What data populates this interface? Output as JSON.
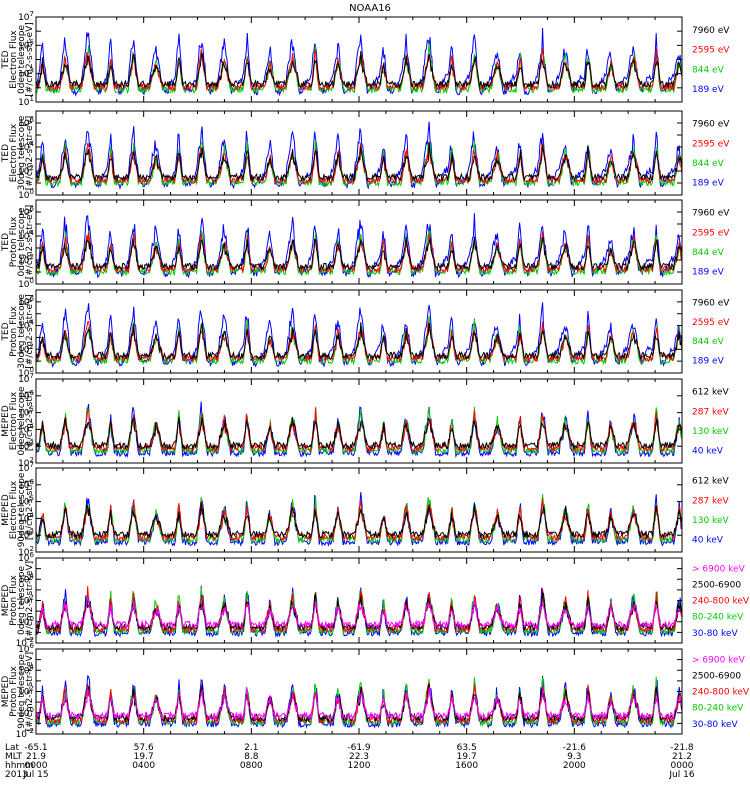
{
  "title": "NOAA16",
  "colors": {
    "blue": "#0000ff",
    "red": "#ff0000",
    "green": "#00cc00",
    "black": "#000000",
    "magenta": "#ff00ff"
  },
  "footer": {
    "row_labels": [
      "Lat",
      "MLT",
      "hhmm",
      "2013"
    ],
    "columns": [
      {
        "lat": "-65.1",
        "mlt": "21.9",
        "hhmm": "0000",
        "date": "Jul 15"
      },
      {
        "lat": "57.6",
        "mlt": "19.7",
        "hhmm": "0400",
        "date": ""
      },
      {
        "lat": "2.1",
        "mlt": "8.8",
        "hhmm": "0800",
        "date": ""
      },
      {
        "lat": "-61.9",
        "mlt": "22.3",
        "hhmm": "1200",
        "date": ""
      },
      {
        "lat": "63.5",
        "mlt": "19.7",
        "hhmm": "1600",
        "date": ""
      },
      {
        "lat": "-21.6",
        "mlt": "9.3",
        "hhmm": "2000",
        "date": ""
      },
      {
        "lat": "-21.8",
        "mlt": "21.2",
        "hhmm": "0000",
        "date": "Jul 16"
      }
    ]
  },
  "chart_data": [
    {
      "type": "line",
      "ylabel_lines": [
        "TED",
        "Electron Flux",
        "0deg telescope",
        "[#/cm2-s-str-eV]"
      ],
      "yscale": "log",
      "ylim_exp": [
        1,
        7
      ],
      "legend": [
        {
          "text": "7960 eV",
          "color": "#000000"
        },
        {
          "text": "2595 eV",
          "color": "#ff0000"
        },
        {
          "text": "844 eV",
          "color": "#00cc00"
        },
        {
          "text": "189 eV",
          "color": "#0000ff"
        }
      ]
    },
    {
      "type": "line",
      "ylabel_lines": [
        "TED",
        "Electron Flux",
        "30deg telescope",
        "[#/cm2-s-str-eV]"
      ],
      "yscale": "log",
      "ylim_exp": [
        0,
        7
      ],
      "legend": [
        {
          "text": "7960 eV",
          "color": "#000000"
        },
        {
          "text": "2595 eV",
          "color": "#ff0000"
        },
        {
          "text": "844 eV",
          "color": "#00cc00"
        },
        {
          "text": "189 eV",
          "color": "#0000ff"
        }
      ]
    },
    {
      "type": "line",
      "ylabel_lines": [
        "TED",
        "Proton Flux",
        "0deg telescope",
        "[#/cm2-s-str-eV]"
      ],
      "yscale": "log",
      "ylim_exp": [
        0,
        7
      ],
      "legend": [
        {
          "text": "7960 eV",
          "color": "#000000"
        },
        {
          "text": "2595 eV",
          "color": "#ff0000"
        },
        {
          "text": "844 eV",
          "color": "#00cc00"
        },
        {
          "text": "189 eV",
          "color": "#0000ff"
        }
      ]
    },
    {
      "type": "line",
      "ylabel_lines": [
        "TED",
        "Proton Flux",
        "30deg telescope",
        "[#/cm2-s-str-eV]"
      ],
      "yscale": "log",
      "ylim_exp": [
        0,
        7
      ],
      "legend": [
        {
          "text": "7960 eV",
          "color": "#000000"
        },
        {
          "text": "2595 eV",
          "color": "#ff0000"
        },
        {
          "text": "844 eV",
          "color": "#00cc00"
        },
        {
          "text": "189 eV",
          "color": "#0000ff"
        }
      ]
    },
    {
      "type": "line",
      "ylabel_lines": [
        "MEPED",
        "Electron Flux",
        "0deg telescope",
        "[#/cm2-s-str]"
      ],
      "yscale": "log",
      "ylim_exp": [
        2,
        7
      ],
      "legend": [
        {
          "text": "612 keV",
          "color": "#000000"
        },
        {
          "text": "287 keV",
          "color": "#ff0000"
        },
        {
          "text": "130 keV",
          "color": "#00cc00"
        },
        {
          "text": "40 keV",
          "color": "#0000ff"
        }
      ]
    },
    {
      "type": "line",
      "ylabel_lines": [
        "MEPED",
        "Electron Flux",
        "90deg telescope",
        "[#/cm2-s-str]"
      ],
      "yscale": "log",
      "ylim_exp": [
        2,
        7
      ],
      "legend": [
        {
          "text": "612 keV",
          "color": "#000000"
        },
        {
          "text": "287 keV",
          "color": "#ff0000"
        },
        {
          "text": "130 keV",
          "color": "#00cc00"
        },
        {
          "text": "40 keV",
          "color": "#0000ff"
        }
      ]
    },
    {
      "type": "line",
      "ylabel_lines": [
        "MEPED",
        "Proton Flux",
        "0deg telescope",
        "[#/cm2-s-str-keV]"
      ],
      "yscale": "log",
      "ylim_exp": [
        -2,
        6
      ],
      "legend": [
        {
          "text": "> 6900 keV",
          "color": "#ff00ff"
        },
        {
          "text": "2500-6900",
          "color": "#000000"
        },
        {
          "text": "240-800 keV",
          "color": "#ff0000"
        },
        {
          "text": "80-240 keV",
          "color": "#00cc00"
        },
        {
          "text": "30-80 keV",
          "color": "#0000ff"
        }
      ]
    },
    {
      "type": "line",
      "ylabel_lines": [
        "MEPED",
        "Proton Flux",
        "90deg telescope",
        "[#/cm2-s-str-keV]"
      ],
      "yscale": "log",
      "ylim_exp": [
        -2,
        6
      ],
      "legend": [
        {
          "text": "> 6900 keV",
          "color": "#ff00ff"
        },
        {
          "text": "2500-6900",
          "color": "#000000"
        },
        {
          "text": "240-800 keV",
          "color": "#ff0000"
        },
        {
          "text": "80-240 keV",
          "color": "#00cc00"
        },
        {
          "text": "30-80 keV",
          "color": "#0000ff"
        }
      ]
    }
  ]
}
